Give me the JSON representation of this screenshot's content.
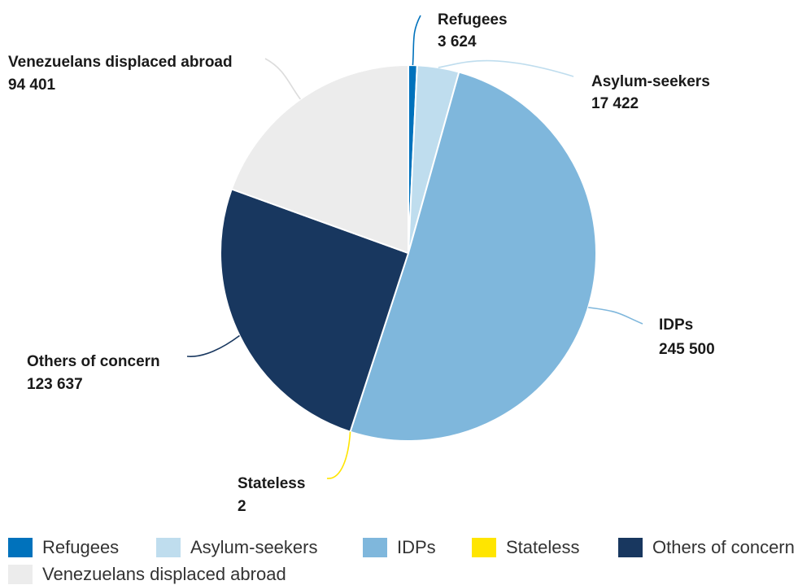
{
  "chart_data": {
    "type": "pie",
    "title": "",
    "series": [
      {
        "name": "Refugees",
        "value": 3624,
        "value_label": "3 624",
        "color": "#0072bc"
      },
      {
        "name": "Asylum-seekers",
        "value": 17422,
        "value_label": "17 422",
        "color": "#bfddee"
      },
      {
        "name": "IDPs",
        "value": 245500,
        "value_label": "245 500",
        "color": "#7fb7dc"
      },
      {
        "name": "Stateless",
        "value": 2,
        "value_label": "2",
        "color": "#ffe500"
      },
      {
        "name": "Others of concern",
        "value": 123637,
        "value_label": "123 637",
        "color": "#18375f"
      },
      {
        "name": "Venezuelans displaced abroad",
        "value": 94401,
        "value_label": "94 401",
        "color": "#ececec"
      }
    ],
    "legend": {
      "position": "bottom",
      "entries": [
        "Refugees",
        "Asylum-seekers",
        "IDPs",
        "Stateless",
        "Others of concern",
        "Venezuelans displaced abroad"
      ]
    }
  }
}
